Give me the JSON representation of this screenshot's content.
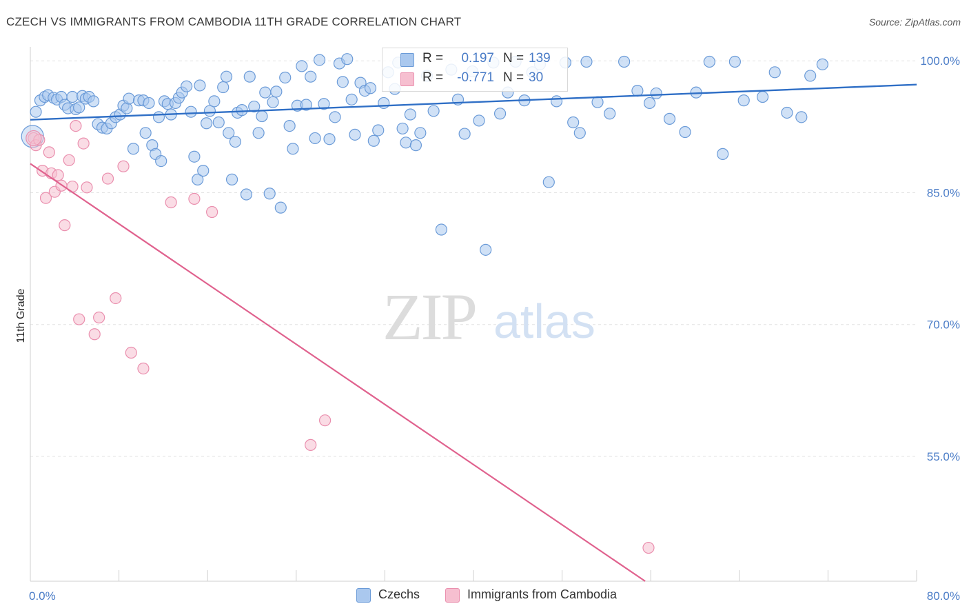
{
  "title": "CZECH VS IMMIGRANTS FROM CAMBODIA 11TH GRADE CORRELATION CHART",
  "source": "Source: ZipAtlas.com",
  "watermark": {
    "zip": "ZIP",
    "atlas": "atlas"
  },
  "legend": {
    "czechs": {
      "r_label": "R =",
      "r_value": "0.197",
      "n_label": "N =",
      "n_value": "139"
    },
    "cambodia": {
      "r_label": "R =",
      "r_value": "-0.771",
      "n_label": "N =",
      "n_value": "30"
    }
  },
  "bottom_legend": {
    "czechs": "Czechs",
    "cambodia": "Immigrants from Cambodia"
  },
  "colors": {
    "czech_fill": "#aac8ee",
    "czech_stroke": "#6b9bd8",
    "czech_line": "#2f6fc6",
    "cambodia_fill": "#f6bfd0",
    "cambodia_stroke": "#ea8fae",
    "cambodia_line": "#e0628e",
    "tick_text": "#4a7cc7",
    "grid": "#e3e3e3"
  },
  "chart_data": {
    "type": "scatter",
    "ylabel": "11th Grade",
    "xlim": [
      0,
      80
    ],
    "ylim": [
      40.8,
      103
    ],
    "x_tick_labels": [
      {
        "x": 0,
        "label": "0.0%"
      },
      {
        "x": 80,
        "label": "80.0%"
      }
    ],
    "y_ticks": [
      {
        "y": 100,
        "label": "100.0%"
      },
      {
        "y": 85,
        "label": "85.0%"
      },
      {
        "y": 70,
        "label": "70.0%"
      },
      {
        "y": 55,
        "label": "55.0%"
      }
    ],
    "series": [
      {
        "name": "Czechs",
        "trend": {
          "x0": 0,
          "y0": 93.3,
          "x1": 80,
          "y1": 97.3
        },
        "points": [
          [
            0.5,
            94.2
          ],
          [
            0.9,
            95.5
          ],
          [
            1.3,
            95.9
          ],
          [
            1.6,
            96.1
          ],
          [
            2.1,
            95.8
          ],
          [
            2.4,
            95.6
          ],
          [
            2.8,
            95.9
          ],
          [
            3.1,
            95.0
          ],
          [
            3.4,
            94.6
          ],
          [
            3.8,
            95.9
          ],
          [
            4.1,
            94.5
          ],
          [
            4.4,
            94.7
          ],
          [
            4.7,
            96.0
          ],
          [
            5.0,
            95.7
          ],
          [
            5.3,
            95.9
          ],
          [
            5.7,
            95.4
          ],
          [
            6.1,
            92.8
          ],
          [
            6.5,
            92.4
          ],
          [
            6.9,
            92.3
          ],
          [
            7.3,
            92.9
          ],
          [
            7.7,
            93.6
          ],
          [
            8.1,
            93.9
          ],
          [
            8.4,
            94.9
          ],
          [
            8.7,
            94.6
          ],
          [
            8.9,
            95.7
          ],
          [
            9.3,
            90.0
          ],
          [
            9.8,
            95.5
          ],
          [
            10.2,
            95.5
          ],
          [
            10.4,
            91.8
          ],
          [
            10.7,
            95.2
          ],
          [
            11.0,
            90.4
          ],
          [
            11.3,
            89.4
          ],
          [
            11.6,
            93.6
          ],
          [
            11.8,
            88.6
          ],
          [
            12.1,
            95.4
          ],
          [
            12.4,
            95.1
          ],
          [
            12.7,
            93.9
          ],
          [
            13.1,
            95.2
          ],
          [
            13.4,
            95.8
          ],
          [
            13.7,
            96.4
          ],
          [
            14.1,
            97.1
          ],
          [
            14.5,
            94.2
          ],
          [
            14.8,
            89.1
          ],
          [
            15.1,
            86.5
          ],
          [
            15.3,
            97.2
          ],
          [
            15.6,
            87.5
          ],
          [
            15.9,
            92.9
          ],
          [
            16.2,
            94.3
          ],
          [
            16.6,
            95.4
          ],
          [
            17.0,
            93.0
          ],
          [
            17.4,
            97.0
          ],
          [
            17.7,
            98.2
          ],
          [
            17.9,
            91.8
          ],
          [
            18.2,
            86.5
          ],
          [
            18.5,
            90.8
          ],
          [
            18.7,
            94.1
          ],
          [
            19.1,
            94.4
          ],
          [
            19.5,
            84.8
          ],
          [
            19.8,
            98.2
          ],
          [
            20.2,
            94.8
          ],
          [
            20.6,
            91.8
          ],
          [
            20.9,
            93.7
          ],
          [
            21.2,
            96.4
          ],
          [
            21.6,
            84.9
          ],
          [
            21.9,
            95.3
          ],
          [
            22.2,
            96.5
          ],
          [
            22.6,
            83.3
          ],
          [
            23.0,
            98.1
          ],
          [
            23.4,
            92.6
          ],
          [
            23.7,
            90.0
          ],
          [
            24.1,
            94.9
          ],
          [
            24.5,
            99.4
          ],
          [
            24.9,
            95.0
          ],
          [
            25.3,
            98.2
          ],
          [
            25.7,
            91.2
          ],
          [
            26.1,
            100.1
          ],
          [
            26.5,
            95.1
          ],
          [
            27.0,
            91.1
          ],
          [
            27.5,
            93.6
          ],
          [
            27.9,
            99.7
          ],
          [
            28.2,
            97.6
          ],
          [
            28.6,
            100.2
          ],
          [
            29.0,
            95.6
          ],
          [
            29.3,
            91.6
          ],
          [
            29.8,
            97.5
          ],
          [
            30.2,
            96.6
          ],
          [
            30.7,
            96.9
          ],
          [
            31.0,
            90.9
          ],
          [
            31.4,
            92.1
          ],
          [
            31.9,
            95.2
          ],
          [
            32.3,
            98.7
          ],
          [
            32.9,
            96.8
          ],
          [
            33.2,
            99.8
          ],
          [
            33.6,
            92.3
          ],
          [
            33.9,
            90.7
          ],
          [
            34.3,
            93.9
          ],
          [
            34.8,
            90.4
          ],
          [
            35.2,
            91.8
          ],
          [
            35.8,
            98.3
          ],
          [
            36.4,
            94.3
          ],
          [
            37.1,
            80.8
          ],
          [
            38.0,
            99.0
          ],
          [
            38.6,
            95.6
          ],
          [
            39.2,
            91.7
          ],
          [
            39.9,
            98.8
          ],
          [
            40.5,
            93.2
          ],
          [
            41.1,
            78.5
          ],
          [
            41.8,
            99.8
          ],
          [
            42.4,
            94.0
          ],
          [
            43.1,
            96.4
          ],
          [
            43.8,
            99.9
          ],
          [
            44.6,
            95.5
          ],
          [
            45.3,
            98.7
          ],
          [
            46.0,
            99.6
          ],
          [
            46.8,
            86.2
          ],
          [
            47.5,
            95.4
          ],
          [
            48.3,
            99.8
          ],
          [
            49.0,
            93.0
          ],
          [
            49.6,
            91.8
          ],
          [
            50.2,
            99.9
          ],
          [
            51.2,
            95.3
          ],
          [
            52.3,
            94.0
          ],
          [
            53.6,
            99.9
          ],
          [
            54.8,
            96.6
          ],
          [
            55.9,
            95.2
          ],
          [
            56.5,
            96.3
          ],
          [
            57.7,
            93.4
          ],
          [
            59.1,
            91.9
          ],
          [
            60.1,
            96.4
          ],
          [
            61.3,
            99.9
          ],
          [
            62.5,
            89.4
          ],
          [
            63.6,
            99.9
          ],
          [
            64.4,
            95.5
          ],
          [
            66.1,
            95.9
          ],
          [
            67.2,
            98.7
          ],
          [
            68.3,
            94.1
          ],
          [
            69.6,
            93.6
          ],
          [
            70.4,
            98.3
          ],
          [
            71.5,
            99.6
          ]
        ]
      },
      {
        "name": "Immigrants from Cambodia",
        "trend": {
          "x0": 0,
          "y0": 88.3,
          "x1": 55.5,
          "y1": 40.8
        },
        "points": [
          [
            0.3,
            91.2
          ],
          [
            0.5,
            90.4
          ],
          [
            0.8,
            91.0
          ],
          [
            1.1,
            87.5
          ],
          [
            1.4,
            84.4
          ],
          [
            1.7,
            89.6
          ],
          [
            1.9,
            87.2
          ],
          [
            2.2,
            85.1
          ],
          [
            2.5,
            87.0
          ],
          [
            2.8,
            85.8
          ],
          [
            3.1,
            81.3
          ],
          [
            3.5,
            88.7
          ],
          [
            3.8,
            85.7
          ],
          [
            4.1,
            92.6
          ],
          [
            4.4,
            70.6
          ],
          [
            4.8,
            90.6
          ],
          [
            5.1,
            85.6
          ],
          [
            5.8,
            68.9
          ],
          [
            6.2,
            70.8
          ],
          [
            7.0,
            86.6
          ],
          [
            7.7,
            73.0
          ],
          [
            8.4,
            88.0
          ],
          [
            9.1,
            66.8
          ],
          [
            10.2,
            65.0
          ],
          [
            12.7,
            83.9
          ],
          [
            14.8,
            84.3
          ],
          [
            16.4,
            82.8
          ],
          [
            25.3,
            56.3
          ],
          [
            26.6,
            59.1
          ],
          [
            55.8,
            44.6
          ]
        ]
      }
    ]
  }
}
